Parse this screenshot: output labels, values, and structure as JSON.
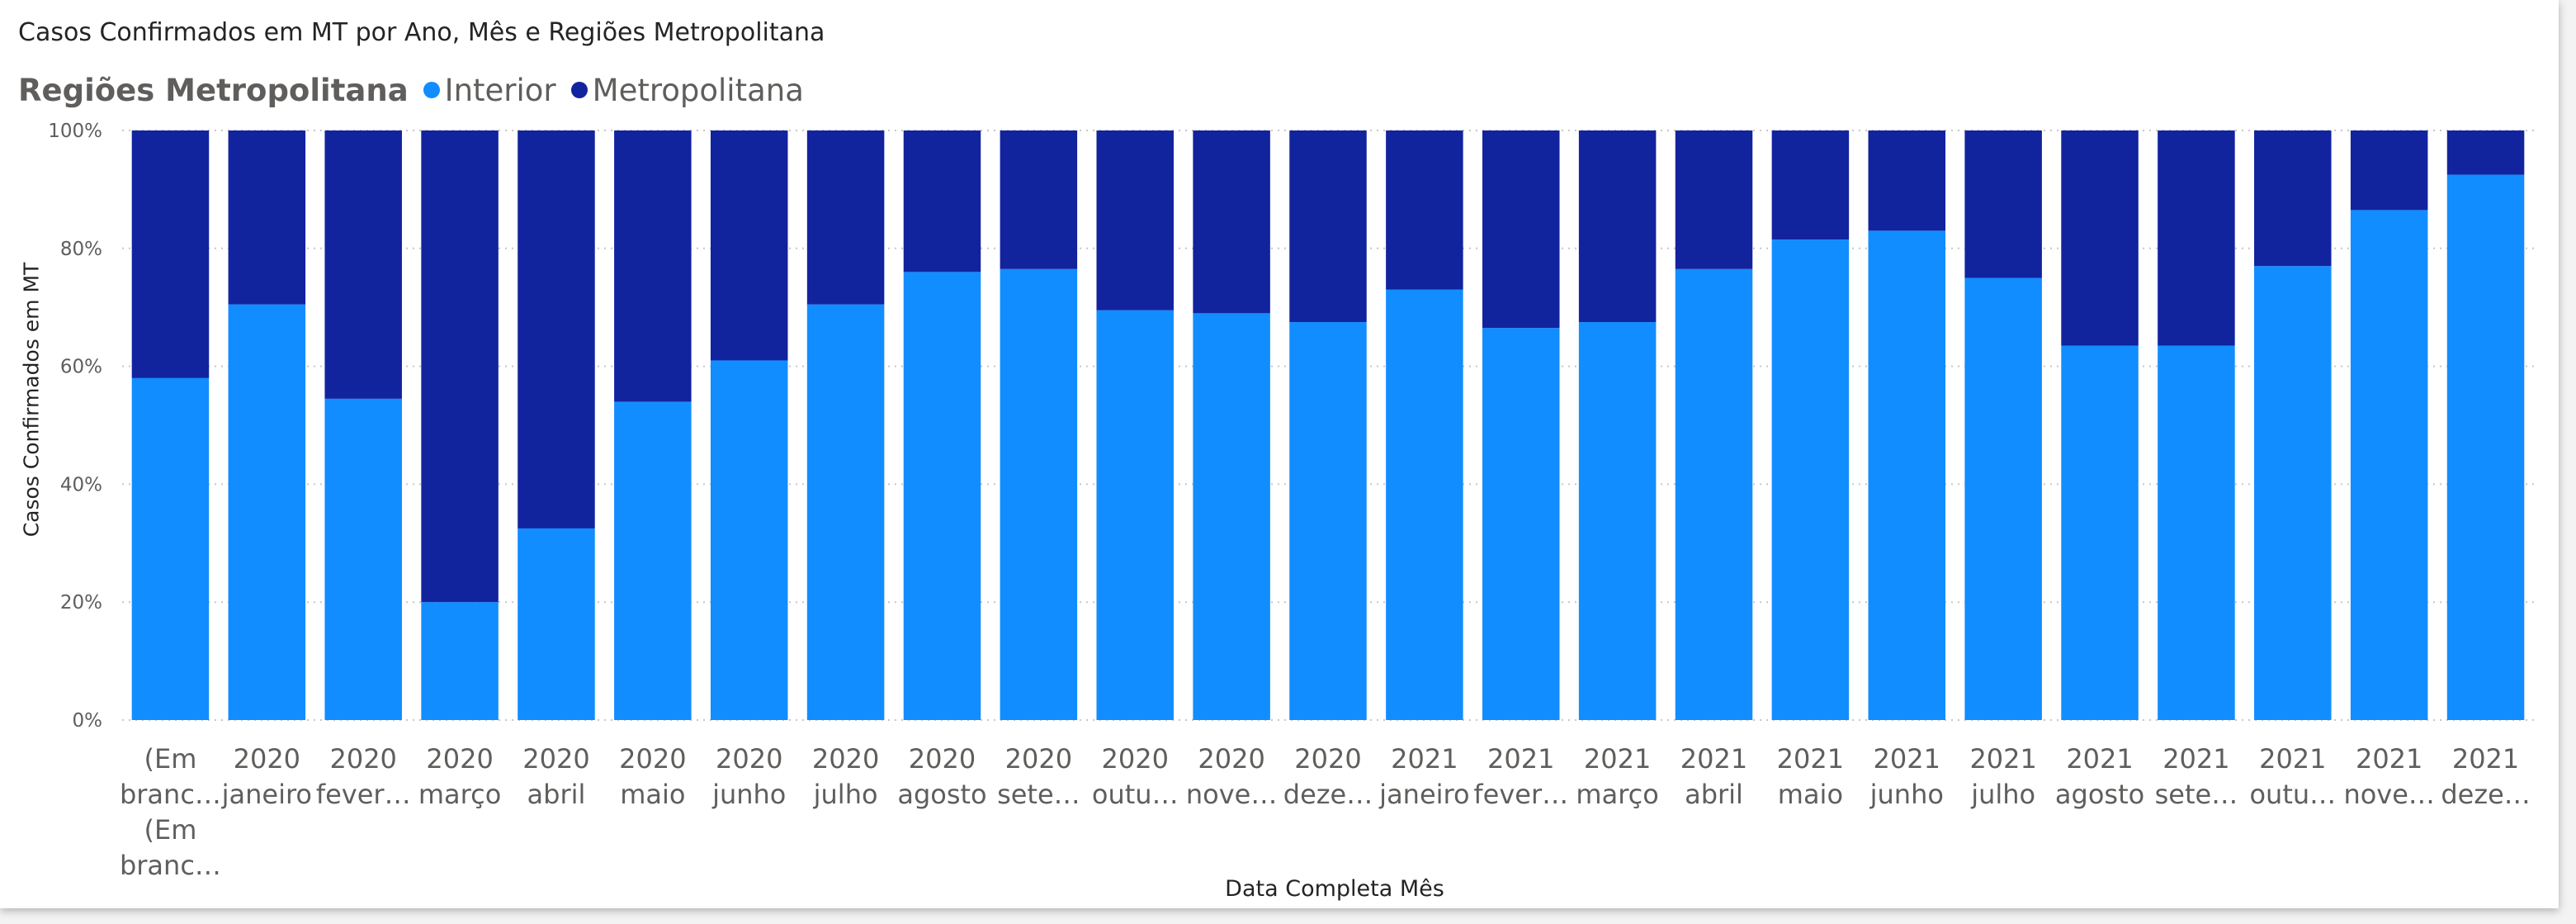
{
  "title": "Casos Confirmados em MT por Ano, Mês e Regiões Metropolitana",
  "legend": {
    "title": "Regiões Metropolitana",
    "items": [
      {
        "label": "Interior",
        "color": "#118dff"
      },
      {
        "label": "Metropolitana",
        "color": "#12239e"
      }
    ]
  },
  "chart_data": {
    "type": "bar",
    "stacked": "percent",
    "xlabel": "Data Completa Mês",
    "ylabel": "Casos Confirmados em MT",
    "ylim": [
      0,
      100
    ],
    "y_ticks": [
      "0%",
      "20%",
      "40%",
      "60%",
      "80%",
      "100%"
    ],
    "grid": true,
    "legend_position": "top-left",
    "categories": [
      [
        "(Em",
        "branc…",
        "(Em",
        "branc…"
      ],
      [
        "2020",
        "janeiro"
      ],
      [
        "2020",
        "fever…"
      ],
      [
        "2020",
        "março"
      ],
      [
        "2020",
        "abril"
      ],
      [
        "2020",
        "maio"
      ],
      [
        "2020",
        "junho"
      ],
      [
        "2020",
        "julho"
      ],
      [
        "2020",
        "agosto"
      ],
      [
        "2020",
        "sete…"
      ],
      [
        "2020",
        "outu…"
      ],
      [
        "2020",
        "nove…"
      ],
      [
        "2020",
        "deze…"
      ],
      [
        "2021",
        "janeiro"
      ],
      [
        "2021",
        "fever…"
      ],
      [
        "2021",
        "março"
      ],
      [
        "2021",
        "abril"
      ],
      [
        "2021",
        "maio"
      ],
      [
        "2021",
        "junho"
      ],
      [
        "2021",
        "julho"
      ],
      [
        "2021",
        "agosto"
      ],
      [
        "2021",
        "sete…"
      ],
      [
        "2021",
        "outu…"
      ],
      [
        "2021",
        "nove…"
      ],
      [
        "2021",
        "deze…"
      ]
    ],
    "series": [
      {
        "name": "Interior",
        "color": "#118dff",
        "values": [
          58,
          70.5,
          54.5,
          20,
          32.5,
          54,
          61,
          70.5,
          76,
          76.5,
          69.5,
          69,
          67.5,
          73,
          66.5,
          67.5,
          76.5,
          81.5,
          83,
          75,
          63.5,
          63.5,
          77,
          86.5,
          92.5
        ]
      },
      {
        "name": "Metropolitana",
        "color": "#12239e",
        "values": [
          42,
          29.5,
          45.5,
          80,
          67.5,
          46,
          39,
          29.5,
          24,
          23.5,
          30.5,
          31,
          32.5,
          27,
          33.5,
          32.5,
          23.5,
          18.5,
          17,
          25,
          36.5,
          36.5,
          23,
          13.5,
          7.5
        ]
      }
    ]
  }
}
